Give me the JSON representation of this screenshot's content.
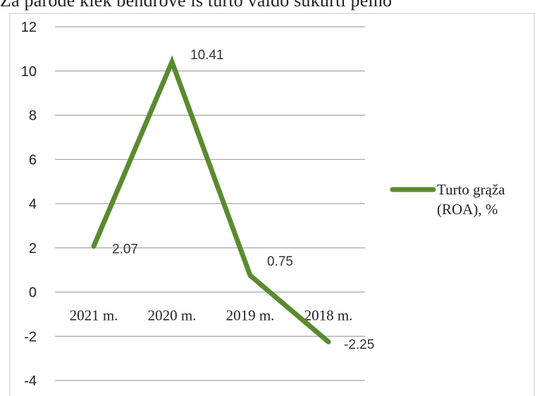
{
  "top_text": "Ža parodė kiek bendrovė iš turto valdo sukurti pelno",
  "colors": {
    "series": "#5b8a2f",
    "grid": "#a6a6a6",
    "frame": "#c8c8c8",
    "text": "#222222"
  },
  "chart_data": {
    "type": "line",
    "title": "",
    "xlabel": "",
    "ylabel": "",
    "ylim": [
      -4,
      12
    ],
    "y_ticks": [
      "12",
      "10",
      "8",
      "6",
      "4",
      "2",
      "0",
      "-2",
      "-4"
    ],
    "y_tick_values": [
      12,
      10,
      8,
      6,
      4,
      2,
      0,
      -2,
      -4
    ],
    "categories": [
      "2021 m.",
      "2020 m.",
      "2019 m.",
      "2018 m."
    ],
    "series": [
      {
        "name": "Turto grąža (ROA), %",
        "values": [
          2.07,
          10.41,
          0.75,
          -2.25
        ],
        "labels": [
          "2.07",
          "10.41",
          "0.75",
          "-2.25"
        ]
      }
    ],
    "grid": true,
    "legend_position": "right"
  }
}
